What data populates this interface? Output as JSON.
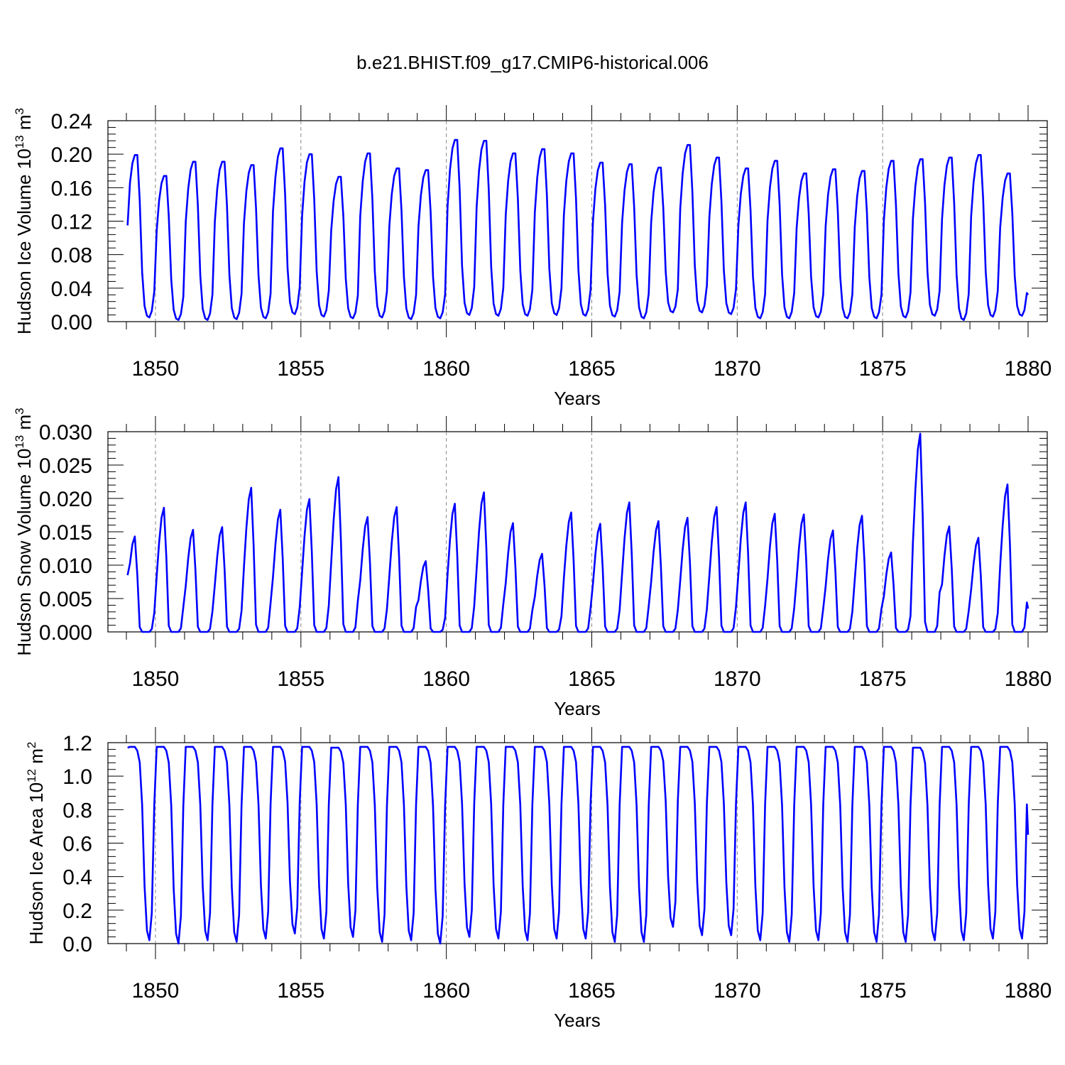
{
  "title": "b.e21.BHIST.f09_g17.CMIP6-historical.006",
  "colors": {
    "series": "#0000ff",
    "axis": "#000000",
    "grid": "#888888"
  },
  "chart_data": [
    {
      "type": "line",
      "ylabel": "Hudson Ice Volume",
      "ylabel_unit": "10",
      "ylabel_exp": "13",
      "ylabel_unit2": "m",
      "ylabel_exp2": "3",
      "xlabel": "Years",
      "xlim": [
        1849.0,
        1880.0
      ],
      "ylim": [
        0.0,
        0.24
      ],
      "xticks": [
        1850,
        1855,
        1860,
        1865,
        1870,
        1875,
        1880
      ],
      "yticks": [
        0.0,
        0.04,
        0.08,
        0.12,
        0.16,
        0.2,
        0.24
      ],
      "ytick_labels": [
        "0.00",
        "0.04",
        "0.08",
        "0.12",
        "0.16",
        "0.20",
        "0.24"
      ],
      "x_grid_dashed": [
        1850,
        1855,
        1860,
        1865,
        1870,
        1875
      ],
      "series": [
        {
          "peaks": [
            0.199,
            0.174,
            0.191,
            0.191,
            0.187,
            0.207,
            0.2,
            0.173,
            0.201,
            0.183,
            0.181,
            0.217,
            0.216,
            0.201,
            0.206,
            0.201,
            0.19,
            0.188,
            0.184,
            0.211,
            0.196,
            0.183,
            0.192,
            0.177,
            0.182,
            0.18,
            0.192,
            0.194,
            0.196,
            0.199,
            0.177
          ],
          "troughs": [
            0.005,
            0.002,
            0.002,
            0.003,
            0.004,
            0.009,
            0.006,
            0.004,
            0.005,
            0.003,
            0.004,
            0.008,
            0.007,
            0.007,
            0.008,
            0.007,
            0.006,
            0.004,
            0.011,
            0.011,
            0.009,
            0.004,
            0.004,
            0.005,
            0.004,
            0.004,
            0.005,
            0.007,
            0.002,
            0.006,
            0.007
          ],
          "start": 0.115,
          "end": 0.032,
          "shape": "ice"
        }
      ]
    },
    {
      "type": "line",
      "ylabel": "Hudson Snow Volume",
      "ylabel_unit": "10",
      "ylabel_exp": "13",
      "ylabel_unit2": "m",
      "ylabel_exp2": "3",
      "xlabel": "Years",
      "xlim": [
        1849.0,
        1880.0
      ],
      "ylim": [
        0.0,
        0.03
      ],
      "xticks": [
        1850,
        1855,
        1860,
        1865,
        1870,
        1875,
        1880
      ],
      "yticks": [
        0.0,
        0.005,
        0.01,
        0.015,
        0.02,
        0.025,
        0.03
      ],
      "ytick_labels": [
        "0.000",
        "0.005",
        "0.010",
        "0.015",
        "0.020",
        "0.025",
        "0.030"
      ],
      "x_grid_dashed": [
        1850,
        1855,
        1860,
        1865,
        1870,
        1875
      ],
      "series": [
        {
          "peaks": [
            0.0143,
            0.0186,
            0.0153,
            0.0157,
            0.0216,
            0.0183,
            0.0199,
            0.0232,
            0.0172,
            0.0187,
            0.0106,
            0.0192,
            0.0209,
            0.0163,
            0.0117,
            0.0179,
            0.0162,
            0.0194,
            0.0166,
            0.0171,
            0.0187,
            0.0194,
            0.0177,
            0.0176,
            0.0152,
            0.0174,
            0.0119,
            0.0297,
            0.0158,
            0.0141,
            0.0221
          ],
          "troughs": [
            0.0,
            0.0,
            0.0,
            0.0,
            0.0,
            0.0,
            0.0,
            0.0,
            0.0,
            0.0,
            0.0,
            0.0,
            0.0,
            0.0,
            0.0,
            0.0,
            0.0,
            0.0,
            0.0,
            0.0,
            0.0,
            0.0,
            0.0,
            0.0,
            0.0,
            0.0,
            0.0,
            0.0,
            0.0,
            0.0,
            0.0
          ],
          "start": 0.0085,
          "end": 0.0035,
          "shape": "snow"
        }
      ]
    },
    {
      "type": "line",
      "ylabel": "Hudson Ice Area",
      "ylabel_unit": "10",
      "ylabel_exp": "12",
      "ylabel_unit2": "m",
      "ylabel_exp2": "2",
      "xlabel": "Years",
      "xlim": [
        1849.0,
        1880.0
      ],
      "ylim": [
        0.0,
        1.2
      ],
      "xticks": [
        1850,
        1855,
        1860,
        1865,
        1870,
        1875,
        1880
      ],
      "yticks": [
        0.0,
        0.2,
        0.4,
        0.6,
        0.8,
        1.0,
        1.2
      ],
      "ytick_labels": [
        "0.0",
        "0.2",
        "0.4",
        "0.6",
        "0.8",
        "1.0",
        "1.2"
      ],
      "x_grid_dashed": [
        1850,
        1855,
        1860,
        1865,
        1870,
        1875
      ],
      "series": [
        {
          "peaks": [
            1.175,
            1.175,
            1.175,
            1.175,
            1.175,
            1.175,
            1.175,
            1.17,
            1.175,
            1.175,
            1.175,
            1.175,
            1.175,
            1.175,
            1.175,
            1.175,
            1.175,
            1.175,
            1.175,
            1.175,
            1.175,
            1.175,
            1.175,
            1.175,
            1.175,
            1.175,
            1.175,
            1.17,
            1.175,
            1.175,
            1.175
          ],
          "troughs": [
            0.02,
            0.0,
            0.02,
            0.01,
            0.03,
            0.06,
            0.03,
            0.04,
            0.01,
            0.02,
            0.0,
            0.04,
            0.03,
            0.02,
            0.03,
            0.03,
            0.01,
            0.01,
            0.1,
            0.05,
            0.05,
            0.02,
            0.01,
            0.02,
            0.01,
            0.01,
            0.01,
            0.02,
            0.02,
            0.03,
            0.03
          ],
          "start": 1.17,
          "end": 0.65,
          "shape": "area"
        }
      ]
    }
  ]
}
